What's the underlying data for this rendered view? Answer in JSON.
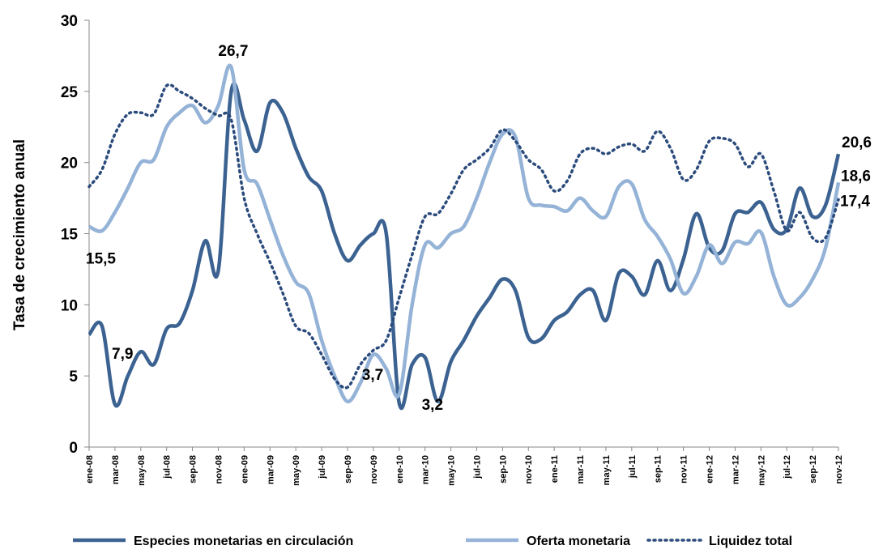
{
  "chart_data": {
    "type": "line",
    "y_label": "Tasa de crecimiento anual",
    "categories": [
      "ene-08",
      null,
      "mar-08",
      null,
      "may-08",
      null,
      "jul-08",
      null,
      "sep-08",
      null,
      "nov-08",
      null,
      "ene-09",
      null,
      "mar-09",
      null,
      "may-09",
      null,
      "jul-09",
      null,
      "sep-09",
      null,
      "nov-09",
      null,
      "ene-10",
      null,
      "mar-10",
      null,
      "may-10",
      null,
      "jul-10",
      null,
      "sep-10",
      null,
      "nov-10",
      null,
      "ene-11",
      null,
      "mar-11",
      null,
      "may-11",
      null,
      "jul-11",
      null,
      "sep-11",
      null,
      "nov-11",
      null,
      "ene-12",
      null,
      "mar-12",
      null,
      "may-12",
      null,
      "jul-12",
      null,
      "sep-12",
      null,
      "nov-12"
    ],
    "series": [
      {
        "name": "Especies monetarias en circulación",
        "color": "#3b6291",
        "style": "solid",
        "values": [
          7.9,
          8.5,
          3.0,
          5.0,
          6.7,
          5.8,
          8.3,
          8.7,
          11.0,
          14.5,
          12.4,
          25.0,
          23.0,
          20.8,
          24.2,
          23.5,
          21.0,
          19.0,
          18.0,
          15.0,
          13.1,
          14.2,
          15.0,
          15.0,
          3.1,
          5.8,
          6.3,
          3.2,
          6.0,
          7.5,
          9.2,
          10.5,
          11.8,
          11.0,
          7.7,
          7.6,
          8.9,
          9.5,
          10.7,
          11.0,
          8.9,
          12.2,
          12.0,
          10.7,
          13.1,
          11.0,
          13.2,
          16.4,
          14.0,
          13.8,
          16.4,
          16.5,
          17.2,
          15.3,
          15.3,
          18.2,
          16.2,
          17.0,
          20.6
        ],
        "value_labels": [
          "7,9",
          null,
          null,
          null,
          null,
          null,
          null,
          null,
          null,
          null,
          null,
          null,
          null,
          null,
          null,
          null,
          null,
          null,
          null,
          null,
          null,
          null,
          null,
          null,
          null,
          null,
          null,
          "3,2",
          null,
          null,
          null,
          null,
          null,
          null,
          null,
          null,
          null,
          null,
          null,
          null,
          null,
          null,
          null,
          null,
          null,
          null,
          null,
          null,
          null,
          null,
          null,
          null,
          null,
          null,
          null,
          null,
          null,
          null,
          "20,6"
        ]
      },
      {
        "name": "Oferta monetaria",
        "color": "#95b3d7",
        "style": "solid",
        "values": [
          15.5,
          15.2,
          16.5,
          18.2,
          20.0,
          20.2,
          22.5,
          23.5,
          24.0,
          22.8,
          24.0,
          26.7,
          19.5,
          18.5,
          16.0,
          13.5,
          11.6,
          10.8,
          7.5,
          5.0,
          3.2,
          4.5,
          6.5,
          5.5,
          3.7,
          10.0,
          14.2,
          14.0,
          15.0,
          15.5,
          17.5,
          20.0,
          22.0,
          21.8,
          17.5,
          17.0,
          16.9,
          16.6,
          17.5,
          16.6,
          16.2,
          18.3,
          18.5,
          16.0,
          14.8,
          13.2,
          10.8,
          12.0,
          14.2,
          12.9,
          14.4,
          14.3,
          15.1,
          12.0,
          10.0,
          10.5,
          11.8,
          14.0,
          18.6
        ],
        "value_labels": [
          "15,5",
          null,
          null,
          null,
          null,
          null,
          null,
          null,
          null,
          null,
          null,
          "26,7",
          null,
          null,
          null,
          null,
          null,
          null,
          null,
          null,
          null,
          null,
          null,
          null,
          "3,7",
          null,
          null,
          null,
          null,
          null,
          null,
          null,
          null,
          null,
          null,
          null,
          null,
          null,
          null,
          null,
          null,
          null,
          null,
          null,
          null,
          null,
          null,
          null,
          null,
          null,
          null,
          null,
          null,
          null,
          null,
          null,
          null,
          null,
          "18,6"
        ]
      },
      {
        "name": "Liquidez total",
        "color": "#2b4b7c",
        "style": "dotted",
        "values": [
          18.3,
          19.5,
          22.0,
          23.4,
          23.5,
          23.4,
          25.4,
          25.0,
          24.5,
          23.8,
          23.3,
          23.0,
          17.5,
          15.0,
          13.0,
          10.8,
          8.5,
          8.0,
          6.5,
          4.8,
          4.2,
          5.8,
          6.8,
          7.5,
          10.5,
          13.5,
          16.2,
          16.4,
          17.8,
          19.5,
          20.2,
          21.0,
          22.3,
          21.5,
          20.2,
          19.5,
          18.0,
          18.7,
          20.6,
          21.0,
          20.6,
          21.1,
          21.3,
          20.8,
          22.2,
          21.0,
          18.8,
          19.5,
          21.5,
          21.7,
          21.3,
          19.7,
          20.6,
          18.0,
          15.2,
          16.5,
          14.7,
          14.7,
          17.4
        ],
        "value_labels": [
          null,
          null,
          null,
          null,
          null,
          null,
          null,
          null,
          null,
          null,
          null,
          null,
          null,
          null,
          null,
          null,
          null,
          null,
          null,
          null,
          null,
          null,
          null,
          null,
          null,
          null,
          null,
          null,
          null,
          null,
          null,
          null,
          null,
          null,
          null,
          null,
          null,
          null,
          null,
          null,
          null,
          null,
          null,
          null,
          null,
          null,
          null,
          null,
          null,
          null,
          null,
          null,
          null,
          null,
          null,
          null,
          null,
          null,
          "17,4"
        ]
      }
    ],
    "ylim": [
      0,
      30
    ],
    "yticks": [
      0,
      5,
      10,
      15,
      20,
      25,
      30
    ],
    "grid": false,
    "legend": "bottom"
  }
}
